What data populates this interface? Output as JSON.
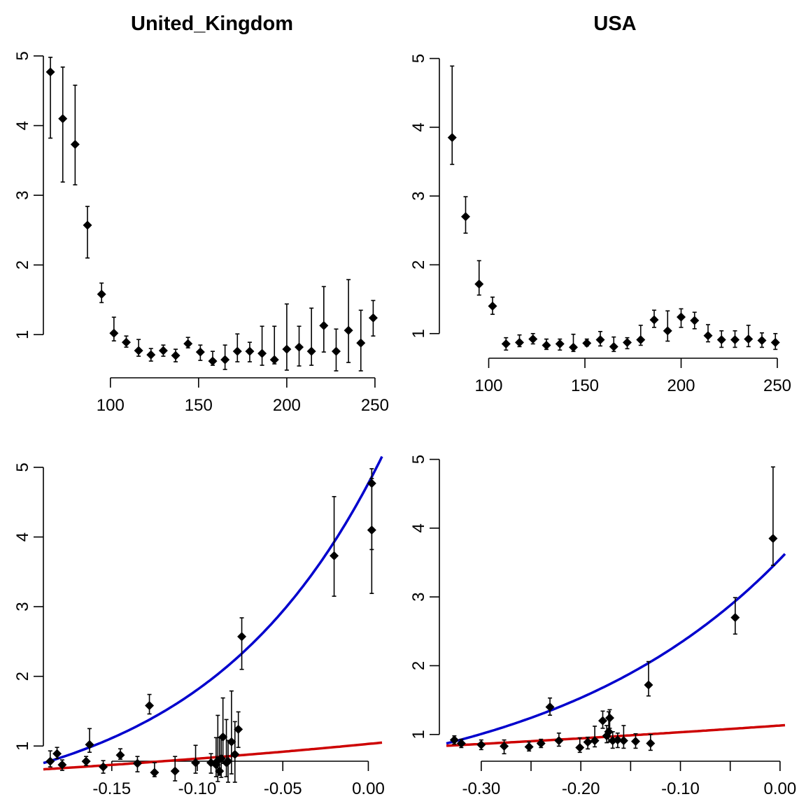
{
  "colors": {
    "points": "#000000",
    "curve_blue": "#0000CD",
    "curve_red": "#CD0000",
    "background": "#FFFFFF"
  },
  "chart_data": [
    {
      "id": "uk_top",
      "type": "scatter",
      "title": "United_Kingdom",
      "error_bars": true,
      "grid": false,
      "xlim": [
        62,
        254
      ],
      "ylim": [
        0.38,
        5.12
      ],
      "x_ticks": [
        100,
        150,
        200,
        250
      ],
      "y_ticks": [
        1,
        2,
        3,
        4,
        5
      ],
      "x_tick_labels": [
        "100",
        "150",
        "200",
        "250"
      ],
      "y_tick_labels": [
        "1",
        "2",
        "3",
        "4",
        "5"
      ],
      "points": [
        {
          "x": 66,
          "y": 4.77,
          "lo": 3.82,
          "hi": 4.98
        },
        {
          "x": 73,
          "y": 4.1,
          "lo": 3.19,
          "hi": 4.84
        },
        {
          "x": 80,
          "y": 3.73,
          "lo": 3.15,
          "hi": 4.58
        },
        {
          "x": 87,
          "y": 2.57,
          "lo": 2.1,
          "hi": 2.84
        },
        {
          "x": 95,
          "y": 1.58,
          "lo": 1.46,
          "hi": 1.74
        },
        {
          "x": 102,
          "y": 1.02,
          "lo": 0.91,
          "hi": 1.25
        },
        {
          "x": 109,
          "y": 0.89,
          "lo": 0.82,
          "hi": 0.98
        },
        {
          "x": 116,
          "y": 0.77,
          "lo": 0.69,
          "hi": 0.93
        },
        {
          "x": 123,
          "y": 0.71,
          "lo": 0.62,
          "hi": 0.8
        },
        {
          "x": 130,
          "y": 0.77,
          "lo": 0.69,
          "hi": 0.85
        },
        {
          "x": 137,
          "y": 0.7,
          "lo": 0.61,
          "hi": 0.79
        },
        {
          "x": 144,
          "y": 0.87,
          "lo": 0.81,
          "hi": 0.96
        },
        {
          "x": 151,
          "y": 0.75,
          "lo": 0.63,
          "hi": 0.85
        },
        {
          "x": 158,
          "y": 0.62,
          "lo": 0.56,
          "hi": 0.76
        },
        {
          "x": 165,
          "y": 0.64,
          "lo": 0.5,
          "hi": 0.85
        },
        {
          "x": 172,
          "y": 0.76,
          "lo": 0.61,
          "hi": 1.01
        },
        {
          "x": 179,
          "y": 0.76,
          "lo": 0.61,
          "hi": 0.89
        },
        {
          "x": 186,
          "y": 0.73,
          "lo": 0.56,
          "hi": 1.12
        },
        {
          "x": 193,
          "y": 0.64,
          "lo": 0.58,
          "hi": 1.12
        },
        {
          "x": 200,
          "y": 0.79,
          "lo": 0.49,
          "hi": 1.44
        },
        {
          "x": 207,
          "y": 0.82,
          "lo": 0.55,
          "hi": 1.12
        },
        {
          "x": 214,
          "y": 0.76,
          "lo": 0.56,
          "hi": 1.38
        },
        {
          "x": 221,
          "y": 1.13,
          "lo": 0.75,
          "hi": 1.69
        },
        {
          "x": 228,
          "y": 0.76,
          "lo": 0.48,
          "hi": 1.08
        },
        {
          "x": 235,
          "y": 1.06,
          "lo": 0.6,
          "hi": 1.79
        },
        {
          "x": 242,
          "y": 0.88,
          "lo": 0.48,
          "hi": 1.35
        },
        {
          "x": 249,
          "y": 1.24,
          "lo": 0.98,
          "hi": 1.49
        }
      ]
    },
    {
      "id": "usa_top",
      "type": "scatter",
      "title": "USA",
      "error_bars": true,
      "grid": false,
      "xlim": [
        78,
        254
      ],
      "ylim": [
        0.55,
        5.25
      ],
      "x_ticks": [
        100,
        150,
        200,
        250
      ],
      "y_ticks": [
        1,
        2,
        3,
        4,
        5
      ],
      "x_tick_labels": [
        "100",
        "150",
        "200",
        "250"
      ],
      "y_tick_labels": [
        "1",
        "2",
        "3",
        "4",
        "5"
      ],
      "points": [
        {
          "x": 81,
          "y": 3.85,
          "lo": 3.46,
          "hi": 4.89
        },
        {
          "x": 88,
          "y": 2.7,
          "lo": 2.46,
          "hi": 2.99
        },
        {
          "x": 95,
          "y": 1.72,
          "lo": 1.56,
          "hi": 2.06
        },
        {
          "x": 102,
          "y": 1.4,
          "lo": 1.28,
          "hi": 1.53
        },
        {
          "x": 109,
          "y": 0.85,
          "lo": 0.76,
          "hi": 0.94
        },
        {
          "x": 116,
          "y": 0.87,
          "lo": 0.81,
          "hi": 0.98
        },
        {
          "x": 123,
          "y": 0.92,
          "lo": 0.85,
          "hi": 1.0
        },
        {
          "x": 130,
          "y": 0.83,
          "lo": 0.77,
          "hi": 0.92
        },
        {
          "x": 137,
          "y": 0.85,
          "lo": 0.76,
          "hi": 0.92
        },
        {
          "x": 144,
          "y": 0.8,
          "lo": 0.74,
          "hi": 0.99
        },
        {
          "x": 151,
          "y": 0.86,
          "lo": 0.82,
          "hi": 0.92
        },
        {
          "x": 158,
          "y": 0.91,
          "lo": 0.82,
          "hi": 1.03
        },
        {
          "x": 165,
          "y": 0.81,
          "lo": 0.74,
          "hi": 0.95
        },
        {
          "x": 172,
          "y": 0.87,
          "lo": 0.78,
          "hi": 0.94
        },
        {
          "x": 179,
          "y": 0.91,
          "lo": 0.83,
          "hi": 1.12
        },
        {
          "x": 186,
          "y": 1.2,
          "lo": 1.09,
          "hi": 1.34
        },
        {
          "x": 193,
          "y": 1.04,
          "lo": 0.89,
          "hi": 1.33
        },
        {
          "x": 200,
          "y": 1.24,
          "lo": 1.09,
          "hi": 1.36
        },
        {
          "x": 207,
          "y": 1.19,
          "lo": 1.07,
          "hi": 1.31
        },
        {
          "x": 214,
          "y": 0.97,
          "lo": 0.88,
          "hi": 1.13
        },
        {
          "x": 221,
          "y": 0.91,
          "lo": 0.8,
          "hi": 1.04
        },
        {
          "x": 228,
          "y": 0.91,
          "lo": 0.8,
          "hi": 1.04
        },
        {
          "x": 235,
          "y": 0.92,
          "lo": 0.81,
          "hi": 1.12
        },
        {
          "x": 242,
          "y": 0.9,
          "lo": 0.8,
          "hi": 1.01
        },
        {
          "x": 249,
          "y": 0.87,
          "lo": 0.77,
          "hi": 1.0
        }
      ]
    },
    {
      "id": "uk_bottom",
      "type": "scatter",
      "title": "",
      "error_bars": true,
      "grid": false,
      "xlim": [
        -0.19,
        0.008
      ],
      "ylim": [
        0.38,
        5.12
      ],
      "x_ticks": [
        -0.15,
        -0.1,
        -0.05,
        0.0
      ],
      "y_ticks": [
        1,
        2,
        3,
        4,
        5
      ],
      "x_tick_labels": [
        "-0.15",
        "-0.10",
        "-0.05",
        "0.00"
      ],
      "y_tick_labels": [
        "1",
        "2",
        "3",
        "4",
        "5"
      ],
      "points": [
        {
          "x": 0.002,
          "y": 4.77,
          "lo": 3.82,
          "hi": 4.98
        },
        {
          "x": 0.002,
          "y": 4.1,
          "lo": 3.19,
          "hi": 4.84
        },
        {
          "x": -0.02,
          "y": 3.73,
          "lo": 3.15,
          "hi": 4.58
        },
        {
          "x": -0.074,
          "y": 2.57,
          "lo": 2.1,
          "hi": 2.84
        },
        {
          "x": -0.128,
          "y": 1.58,
          "lo": 1.46,
          "hi": 1.74
        },
        {
          "x": -0.163,
          "y": 1.02,
          "lo": 0.91,
          "hi": 1.25
        },
        {
          "x": -0.182,
          "y": 0.89,
          "lo": 0.82,
          "hi": 0.98
        },
        {
          "x": -0.186,
          "y": 0.78,
          "lo": 0.7,
          "hi": 0.93
        },
        {
          "x": -0.179,
          "y": 0.73,
          "lo": 0.65,
          "hi": 0.8
        },
        {
          "x": -0.165,
          "y": 0.78,
          "lo": 0.72,
          "hi": 0.85
        },
        {
          "x": -0.155,
          "y": 0.7,
          "lo": 0.61,
          "hi": 0.79
        },
        {
          "x": -0.145,
          "y": 0.87,
          "lo": 0.81,
          "hi": 0.96
        },
        {
          "x": -0.135,
          "y": 0.75,
          "lo": 0.63,
          "hi": 0.85
        },
        {
          "x": -0.125,
          "y": 0.62,
          "lo": 0.56,
          "hi": 0.76
        },
        {
          "x": -0.113,
          "y": 0.64,
          "lo": 0.5,
          "hi": 0.85
        },
        {
          "x": -0.101,
          "y": 0.76,
          "lo": 0.61,
          "hi": 1.01
        },
        {
          "x": -0.092,
          "y": 0.76,
          "lo": 0.61,
          "hi": 0.89
        },
        {
          "x": -0.089,
          "y": 0.73,
          "lo": 0.56,
          "hi": 1.12
        },
        {
          "x": -0.087,
          "y": 0.64,
          "lo": 0.58,
          "hi": 1.12
        },
        {
          "x": -0.088,
          "y": 0.79,
          "lo": 0.49,
          "hi": 1.44
        },
        {
          "x": -0.086,
          "y": 0.82,
          "lo": 0.55,
          "hi": 1.12
        },
        {
          "x": -0.083,
          "y": 0.76,
          "lo": 0.56,
          "hi": 1.38
        },
        {
          "x": -0.085,
          "y": 1.13,
          "lo": 0.75,
          "hi": 1.69
        },
        {
          "x": -0.082,
          "y": 0.78,
          "lo": 0.48,
          "hi": 1.08
        },
        {
          "x": -0.08,
          "y": 1.06,
          "lo": 0.6,
          "hi": 1.79
        },
        {
          "x": -0.078,
          "y": 0.88,
          "lo": 0.48,
          "hi": 1.35
        },
        {
          "x": -0.076,
          "y": 1.24,
          "lo": 0.98,
          "hi": 1.49
        }
      ],
      "curves": [
        {
          "color": "blue",
          "form": "exp",
          "a": 4.77,
          "b": 9.7
        },
        {
          "color": "red",
          "form": "exp",
          "a": 1.03,
          "b": 2.3
        }
      ]
    },
    {
      "id": "usa_bottom",
      "type": "scatter",
      "title": "",
      "error_bars": true,
      "grid": false,
      "xlim": [
        -0.335,
        0.005
      ],
      "ylim": [
        0.55,
        5.25
      ],
      "x_ticks": [
        -0.3,
        -0.25,
        -0.2,
        -0.15,
        -0.1,
        -0.05,
        0.0
      ],
      "y_ticks": [
        1,
        2,
        3,
        4,
        5
      ],
      "x_tick_labels": [
        "-0.30",
        "",
        "-0.20",
        "",
        "-0.10",
        "",
        "0.00"
      ],
      "y_tick_labels": [
        "1",
        "2",
        "3",
        "4",
        "5"
      ],
      "points": [
        {
          "x": -0.007,
          "y": 3.85,
          "lo": 3.46,
          "hi": 4.89
        },
        {
          "x": -0.045,
          "y": 2.7,
          "lo": 2.46,
          "hi": 2.99
        },
        {
          "x": -0.132,
          "y": 1.72,
          "lo": 1.56,
          "hi": 2.06
        },
        {
          "x": -0.231,
          "y": 1.4,
          "lo": 1.28,
          "hi": 1.53
        },
        {
          "x": -0.327,
          "y": 0.92,
          "lo": 0.86,
          "hi": 0.98
        },
        {
          "x": -0.32,
          "y": 0.87,
          "lo": 0.81,
          "hi": 0.93
        },
        {
          "x": -0.3,
          "y": 0.85,
          "lo": 0.78,
          "hi": 0.92
        },
        {
          "x": -0.277,
          "y": 0.83,
          "lo": 0.72,
          "hi": 0.92
        },
        {
          "x": -0.252,
          "y": 0.82,
          "lo": 0.76,
          "hi": 0.89
        },
        {
          "x": -0.24,
          "y": 0.87,
          "lo": 0.81,
          "hi": 0.93
        },
        {
          "x": -0.222,
          "y": 0.91,
          "lo": 0.83,
          "hi": 1.02
        },
        {
          "x": -0.201,
          "y": 0.81,
          "lo": 0.74,
          "hi": 0.95
        },
        {
          "x": -0.193,
          "y": 0.89,
          "lo": 0.79,
          "hi": 0.96
        },
        {
          "x": -0.186,
          "y": 0.91,
          "lo": 0.82,
          "hi": 1.12
        },
        {
          "x": -0.178,
          "y": 1.2,
          "lo": 1.09,
          "hi": 1.34
        },
        {
          "x": -0.172,
          "y": 1.04,
          "lo": 0.89,
          "hi": 1.33
        },
        {
          "x": -0.171,
          "y": 1.24,
          "lo": 1.09,
          "hi": 1.36
        },
        {
          "x": -0.174,
          "y": 0.98,
          "lo": 0.88,
          "hi": 1.13
        },
        {
          "x": -0.168,
          "y": 0.91,
          "lo": 0.8,
          "hi": 1.04
        },
        {
          "x": -0.163,
          "y": 0.92,
          "lo": 0.81,
          "hi": 1.02
        },
        {
          "x": -0.157,
          "y": 0.91,
          "lo": 0.8,
          "hi": 1.13
        },
        {
          "x": -0.145,
          "y": 0.9,
          "lo": 0.8,
          "hi": 1.01
        },
        {
          "x": -0.13,
          "y": 0.87,
          "lo": 0.77,
          "hi": 1.0
        }
      ],
      "curves": [
        {
          "color": "blue",
          "form": "exp",
          "a": 3.55,
          "b": 4.2
        },
        {
          "color": "red",
          "form": "exp",
          "a": 1.13,
          "b": 0.9
        }
      ]
    }
  ]
}
